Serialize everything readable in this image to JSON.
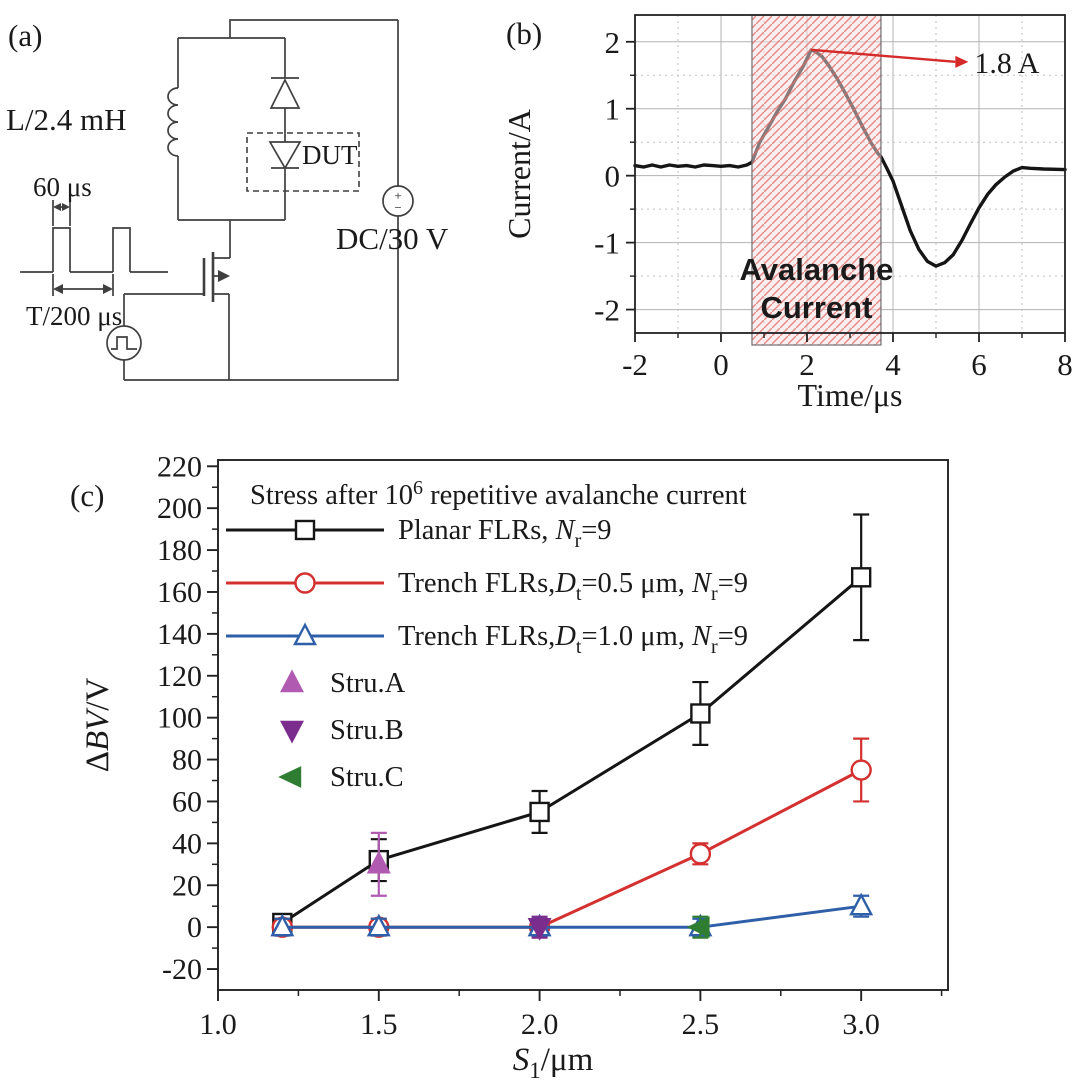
{
  "figure": {
    "panel_a": {
      "label": "(a)",
      "inductor_label": "L/2.4 mH",
      "pulse_width_label": "60 μs",
      "period_label": "T/200 μs",
      "dut_label": "DUT",
      "supply_label": "DC/30 V",
      "supply_plus": "+",
      "supply_minus": "−"
    },
    "panel_b": {
      "label": "(b)"
    },
    "panel_c": {
      "label": "(c)"
    }
  },
  "chart_data": [
    {
      "panel": "b",
      "type": "line",
      "title": "",
      "xlabel": "Time/μs",
      "ylabel": "Current/A",
      "xlim": [
        -2,
        8
      ],
      "ylim": [
        -2.35,
        2.4
      ],
      "xticks": [
        -2,
        0,
        2,
        4,
        6,
        8
      ],
      "xticks_minor": [
        -1,
        1,
        3,
        5,
        7
      ],
      "yticks": [
        -2,
        -1,
        0,
        1,
        2
      ],
      "yticks_minor": [
        -1.5,
        -0.5,
        0.5,
        1.5
      ],
      "grid": true,
      "region": {
        "label_line1": "Avalanche",
        "label_line2": "Current",
        "x0": 0.72,
        "x1": 3.72,
        "color": "#d42a2a"
      },
      "annotation": {
        "text": "1.8 A",
        "color": "#d42a2a",
        "from": [
          2.1,
          1.88
        ],
        "to": [
          5.45,
          1.7
        ]
      },
      "series": [
        {
          "id": "drain-current",
          "name": "avalanche current waveform",
          "color": "#151515",
          "x": [
            -2,
            -1.8,
            -1.6,
            -1.4,
            -1.2,
            -1,
            -0.8,
            -0.6,
            -0.4,
            -0.2,
            0,
            0.2,
            0.4,
            0.6,
            0.72,
            0.9,
            1.1,
            1.3,
            1.5,
            1.7,
            1.9,
            2,
            2.1,
            2.2,
            2.35,
            2.5,
            2.7,
            2.9,
            3.1,
            3.3,
            3.5,
            3.65,
            3.72,
            3.85,
            4,
            4.2,
            4.4,
            4.6,
            4.8,
            5,
            5.2,
            5.4,
            5.6,
            5.8,
            6,
            6.2,
            6.4,
            6.6,
            6.8,
            7,
            7.2,
            7.5,
            8
          ],
          "y": [
            0.15,
            0.13,
            0.16,
            0.13,
            0.16,
            0.14,
            0.15,
            0.13,
            0.16,
            0.15,
            0.14,
            0.15,
            0.13,
            0.16,
            0.2,
            0.5,
            0.72,
            0.95,
            1.15,
            1.4,
            1.62,
            1.75,
            1.88,
            1.85,
            1.78,
            1.65,
            1.45,
            1.22,
            0.98,
            0.72,
            0.48,
            0.33,
            0.28,
            0.12,
            -0.08,
            -0.45,
            -0.82,
            -1.1,
            -1.28,
            -1.35,
            -1.3,
            -1.18,
            -0.97,
            -0.72,
            -0.48,
            -0.28,
            -0.13,
            -0.02,
            0.07,
            0.12,
            0.11,
            0.1,
            0.09
          ]
        }
      ]
    },
    {
      "panel": "c",
      "type": "line",
      "title_parts": [
        {
          "t": "Stress after 10"
        },
        {
          "t": "6",
          "sup": true
        },
        {
          "t": " repetitive avalanche current"
        }
      ],
      "xlabel_parts": [
        {
          "t": "S",
          "i": true
        },
        {
          "t": "1",
          "sub": true
        },
        {
          "t": "/μm"
        }
      ],
      "ylabel_parts": [
        {
          "t": "Δ"
        },
        {
          "t": "BV",
          "i": true
        },
        {
          "t": "/V"
        }
      ],
      "xlim": [
        1.0,
        3.27
      ],
      "ylim": [
        -30,
        223
      ],
      "xticks": [
        1.0,
        1.5,
        2.0,
        2.5,
        3.0
      ],
      "xticks_minor": [
        1.25,
        1.75,
        2.25,
        2.75,
        3.25
      ],
      "yticks": [
        -20,
        0,
        20,
        40,
        60,
        80,
        100,
        120,
        140,
        160,
        180,
        200,
        220
      ],
      "yticks_minor": [
        -10,
        10,
        30,
        50,
        70,
        90,
        110,
        130,
        150,
        170,
        190,
        210
      ],
      "grid": false,
      "series": [
        {
          "id": "planar-flrs",
          "label_parts": [
            {
              "t": "Planar FLRs, "
            },
            {
              "t": "N",
              "i": true
            },
            {
              "t": "r",
              "sub": true
            },
            {
              "t": "=9"
            }
          ],
          "color": "#151515",
          "marker": "square-open",
          "line": true,
          "x": [
            1.2,
            1.5,
            2.0,
            2.5,
            3.0
          ],
          "y": [
            2,
            32,
            55,
            102,
            167
          ],
          "yerr": [
            4,
            10,
            10,
            15,
            30
          ]
        },
        {
          "id": "trench-flrs-05",
          "label_parts": [
            {
              "t": "Trench FLRs,"
            },
            {
              "t": "D",
              "i": true
            },
            {
              "t": "t",
              "sub": true
            },
            {
              "t": "=0.5 μm, "
            },
            {
              "t": "N",
              "i": true
            },
            {
              "t": "r",
              "sub": true
            },
            {
              "t": "=9"
            }
          ],
          "color": "#d43030",
          "marker": "circle-open",
          "line": true,
          "x": [
            1.2,
            1.5,
            2.0,
            2.5,
            3.0
          ],
          "y": [
            0,
            0,
            0,
            35,
            75
          ],
          "yerr": [
            4,
            4,
            4,
            5,
            15
          ]
        },
        {
          "id": "trench-flrs-10",
          "label_parts": [
            {
              "t": "Trench FLRs,"
            },
            {
              "t": "D",
              "i": true
            },
            {
              "t": "t",
              "sub": true
            },
            {
              "t": "=1.0 μm, "
            },
            {
              "t": "N",
              "i": true
            },
            {
              "t": "r",
              "sub": true
            },
            {
              "t": "=9"
            }
          ],
          "color": "#2f5fa8",
          "marker": "triangle-up-open",
          "line": true,
          "x": [
            1.2,
            1.5,
            2.0,
            2.5,
            3.0
          ],
          "y": [
            0,
            0,
            0,
            0,
            10
          ],
          "yerr": [
            4,
            4,
            4,
            4,
            5
          ]
        },
        {
          "id": "stru-a",
          "label_parts": [
            {
              "t": "Stru.A"
            }
          ],
          "color": "#b05ab2",
          "marker": "triangle-up-filled",
          "line": false,
          "x": [
            1.5
          ],
          "y": [
            30
          ],
          "yerr": [
            15
          ]
        },
        {
          "id": "stru-b",
          "label_parts": [
            {
              "t": "Stru.B"
            }
          ],
          "color": "#7b2d8e",
          "marker": "triangle-down-filled",
          "line": false,
          "x": [
            2.0
          ],
          "y": [
            0
          ],
          "yerr": [
            5
          ]
        },
        {
          "id": "stru-c",
          "label_parts": [
            {
              "t": "Stru.C"
            }
          ],
          "color": "#2e7d32",
          "marker": "triangle-left-filled",
          "line": false,
          "x": [
            2.5
          ],
          "y": [
            0
          ],
          "yerr": [
            5
          ]
        }
      ]
    }
  ]
}
